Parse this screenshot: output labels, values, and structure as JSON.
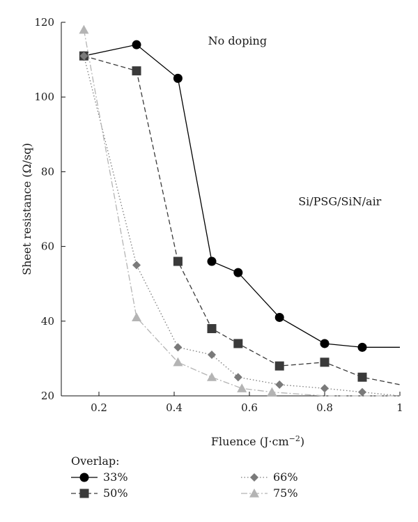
{
  "chart_data": {
    "type": "line",
    "title": "",
    "xlabel": "Fluence (J·cm",
    "xlabel_sup": "−2",
    "xlabel_close": ")",
    "ylabel": "Sheet resistance (Ω/sq)",
    "xlim": [
      0.1,
      1.0
    ],
    "ylim": [
      20,
      120
    ],
    "x_ticks": [
      0.2,
      0.4,
      0.6,
      0.8,
      1.0
    ],
    "x_tick_labels": [
      "0.2",
      "0.4",
      "0.6",
      "0.8",
      "1"
    ],
    "y_ticks": [
      20,
      40,
      60,
      80,
      100,
      120
    ],
    "y_tick_labels": [
      "20",
      "40",
      "60",
      "80",
      "100",
      "120"
    ],
    "grid": false,
    "annotations": [
      {
        "text": "No doping",
        "x": 0.49,
        "y": 114
      },
      {
        "text": "Si/PSG/SiN/air",
        "x": 0.73,
        "y": 71
      }
    ],
    "legend": {
      "title": "Overlap:",
      "placement": "bottom"
    },
    "series": [
      {
        "name": "33%",
        "marker": "circle",
        "line": "solid",
        "color": "#000000",
        "x": [
          0.16,
          0.3,
          0.41,
          0.5,
          0.57,
          0.68,
          0.8,
          0.9,
          1.0
        ],
        "y": [
          111,
          114,
          105,
          56,
          53,
          41,
          34,
          33,
          33
        ],
        "marker_mask": [
          true,
          true,
          true,
          true,
          true,
          true,
          true,
          true,
          false
        ]
      },
      {
        "name": "50%",
        "marker": "square",
        "line": "dashed",
        "color": "#3a3a3a",
        "x": [
          0.16,
          0.3,
          0.41,
          0.5,
          0.57,
          0.68,
          0.8,
          0.9,
          1.0
        ],
        "y": [
          111,
          107,
          56,
          38,
          34,
          28,
          29,
          25,
          23
        ],
        "marker_mask": [
          true,
          true,
          true,
          true,
          true,
          true,
          true,
          true,
          false
        ]
      },
      {
        "name": "66%",
        "marker": "diamond",
        "line": "dotted",
        "color": "#7a7a7a",
        "x": [
          0.16,
          0.3,
          0.41,
          0.5,
          0.57,
          0.68,
          0.8,
          0.9,
          1.0
        ],
        "y": [
          111,
          55,
          33,
          31,
          25,
          23,
          22,
          21,
          20
        ],
        "marker_mask": [
          true,
          true,
          true,
          true,
          true,
          true,
          true,
          true,
          false
        ]
      },
      {
        "name": "75%",
        "marker": "triangle",
        "line": "dashdot",
        "color": "#b4b4b4",
        "x": [
          0.16,
          0.3,
          0.41,
          0.5,
          0.58,
          0.66,
          0.8,
          1.0
        ],
        "y": [
          118,
          41,
          29,
          25,
          22,
          21,
          20,
          20
        ],
        "marker_mask": [
          true,
          true,
          true,
          true,
          true,
          true,
          false,
          false
        ]
      }
    ]
  }
}
